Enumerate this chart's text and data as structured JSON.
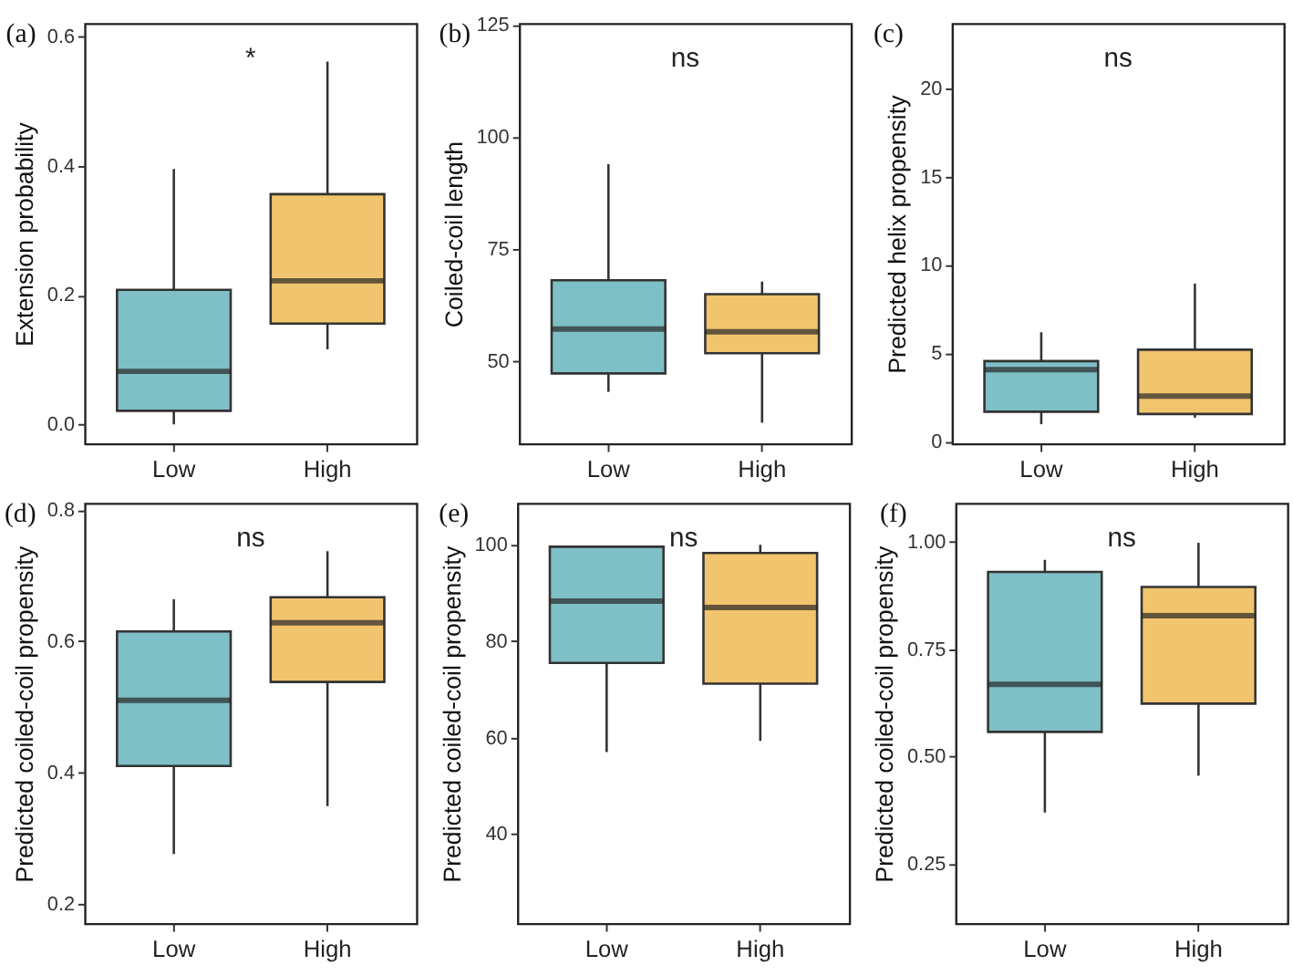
{
  "chart_data": [
    {
      "type": "box",
      "title": "(a)",
      "ylabel": "Extension probability",
      "categories": [
        "Low",
        "High"
      ],
      "colors": [
        "#7fbfc6",
        "#f1c46e"
      ],
      "boxes": [
        {
          "low": 0.0,
          "q1": 0.021,
          "median": 0.082,
          "q3": 0.208,
          "high": 0.395
        },
        {
          "low": 0.116,
          "q1": 0.156,
          "median": 0.222,
          "q3": 0.356,
          "high": 0.561
        }
      ],
      "ylim": [
        -0.03,
        0.62
      ],
      "yticks": [
        {
          "value": 0,
          "label": "0.0"
        },
        0.2,
        0.4,
        0.6
      ],
      "annotations": [
        "*"
      ]
    },
    {
      "type": "box",
      "title": "(b)",
      "ylabel": "Coiled-coil length",
      "categories": [
        "Low",
        "High"
      ],
      "colors": [
        "#7fbfc6",
        "#f1c46e"
      ],
      "boxes": [
        {
          "low": 43.1,
          "q1": 47.2,
          "median": 57.1,
          "q3": 68.0,
          "high": 93.9
        },
        {
          "low": 36.2,
          "q1": 51.7,
          "median": 56.5,
          "q3": 64.9,
          "high": 67.7
        }
      ],
      "ylim": [
        31.5,
        125.3
      ],
      "yticks": [
        50,
        75,
        100,
        125
      ],
      "annotations": [
        "ns"
      ]
    },
    {
      "type": "box",
      "title": "(c)",
      "ylabel": "Predicted helix propensity",
      "categories": [
        "Low",
        "High"
      ],
      "colors": [
        "#7fbfc6",
        "#f1c46e"
      ],
      "boxes": [
        {
          "low": 0.96,
          "q1": 1.67,
          "median": 4.06,
          "q3": 4.54,
          "high": 6.18
        },
        {
          "low": 1.33,
          "q1": 1.54,
          "median": 2.56,
          "q3": 5.19,
          "high": 8.94
        }
      ],
      "ylim": [
        -0.15,
        23.7
      ],
      "yticks": [
        0,
        5,
        10,
        15,
        20
      ],
      "annotations": [
        "ns"
      ]
    },
    {
      "type": "box",
      "title": "(d)",
      "ylabel": "Predicted coiled-coil propensity",
      "categories": [
        "Low",
        "High"
      ],
      "colors": [
        "#7fbfc6",
        "#f1c46e"
      ],
      "boxes": [
        {
          "low": 0.276,
          "q1": 0.41,
          "median": 0.51,
          "q3": 0.615,
          "high": 0.664
        },
        {
          "low": 0.349,
          "q1": 0.538,
          "median": 0.628,
          "q3": 0.667,
          "high": 0.737
        }
      ],
      "ylim": [
        0.17,
        0.81
      ],
      "yticks": [
        0.2,
        0.4,
        0.6,
        0.8
      ],
      "annotations": [
        "ns"
      ]
    },
    {
      "type": "box",
      "title": "(e)",
      "ylabel": "Predicted coiled-coil propensity",
      "categories": [
        "Low",
        "High"
      ],
      "colors": [
        "#7fbfc6",
        "#f1c46e"
      ],
      "boxes": [
        {
          "low": 57.0,
          "q1": 75.5,
          "median": 88.3,
          "q3": 99.6,
          "high": 99.8
        },
        {
          "low": 59.3,
          "q1": 71.2,
          "median": 87.0,
          "q3": 98.3,
          "high": 100.0
        }
      ],
      "ylim": [
        21.4,
        108.6
      ],
      "yticks": [
        40,
        60,
        80,
        100
      ],
      "annotations": [
        "ns"
      ]
    },
    {
      "type": "box",
      "title": "(f)",
      "ylabel": "Predicted coiled-coil propensity",
      "categories": [
        "Low",
        "High"
      ],
      "colors": [
        "#7fbfc6",
        "#f1c46e"
      ],
      "boxes": [
        {
          "low": 0.369,
          "q1": 0.557,
          "median": 0.668,
          "q3": 0.93,
          "high": 0.958
        },
        {
          "low": 0.455,
          "q1": 0.623,
          "median": 0.828,
          "q3": 0.895,
          "high": 0.998
        }
      ],
      "ylim": [
        0.11,
        1.09
      ],
      "yticks": [
        {
          "value": 0.25,
          "label": "0.25"
        },
        {
          "value": 0.5,
          "label": "0.50"
        },
        {
          "value": 0.75,
          "label": "0.75"
        },
        {
          "value": 1,
          "label": "1.00"
        }
      ],
      "annotations": [
        "ns"
      ]
    }
  ]
}
